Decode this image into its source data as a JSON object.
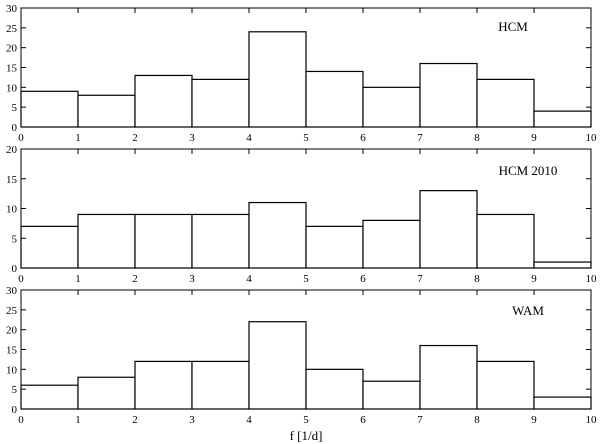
{
  "chart_data": [
    {
      "type": "bar",
      "label": "HCM",
      "bin_edges": [
        0,
        1,
        2,
        3,
        4,
        5,
        6,
        7,
        8,
        9,
        10
      ],
      "values": [
        9,
        8,
        13,
        12,
        24,
        14,
        10,
        16,
        12,
        4
      ],
      "xlim": [
        0,
        10
      ],
      "ylim": [
        0,
        30
      ],
      "yticks": [
        0,
        5,
        10,
        15,
        20,
        25,
        30
      ],
      "xticks": [
        0,
        1,
        2,
        3,
        4,
        5,
        6,
        7,
        8,
        9,
        10
      ]
    },
    {
      "type": "bar",
      "label": "HCM 2010",
      "bin_edges": [
        0,
        1,
        2,
        3,
        4,
        5,
        6,
        7,
        8,
        9,
        10
      ],
      "values": [
        7,
        9,
        9,
        9,
        11,
        7,
        8,
        13,
        9,
        1
      ],
      "xlim": [
        0,
        10
      ],
      "ylim": [
        0,
        20
      ],
      "yticks": [
        0,
        5,
        10,
        15,
        20
      ],
      "xticks": [
        0,
        1,
        2,
        3,
        4,
        5,
        6,
        7,
        8,
        9,
        10
      ]
    },
    {
      "type": "bar",
      "label": "WAM",
      "bin_edges": [
        0,
        1,
        2,
        3,
        4,
        5,
        6,
        7,
        8,
        9,
        10
      ],
      "values": [
        6,
        8,
        12,
        12,
        22,
        10,
        7,
        16,
        12,
        3
      ],
      "xlim": [
        0,
        10
      ],
      "ylim": [
        0,
        30
      ],
      "yticks": [
        0,
        5,
        10,
        15,
        20,
        25,
        30
      ],
      "xticks": [
        0,
        1,
        2,
        3,
        4,
        5,
        6,
        7,
        8,
        9,
        10
      ]
    }
  ],
  "xlabel": "f [1/d]",
  "colors": {
    "bar_fill": "#ffffff",
    "stroke": "#000000"
  }
}
